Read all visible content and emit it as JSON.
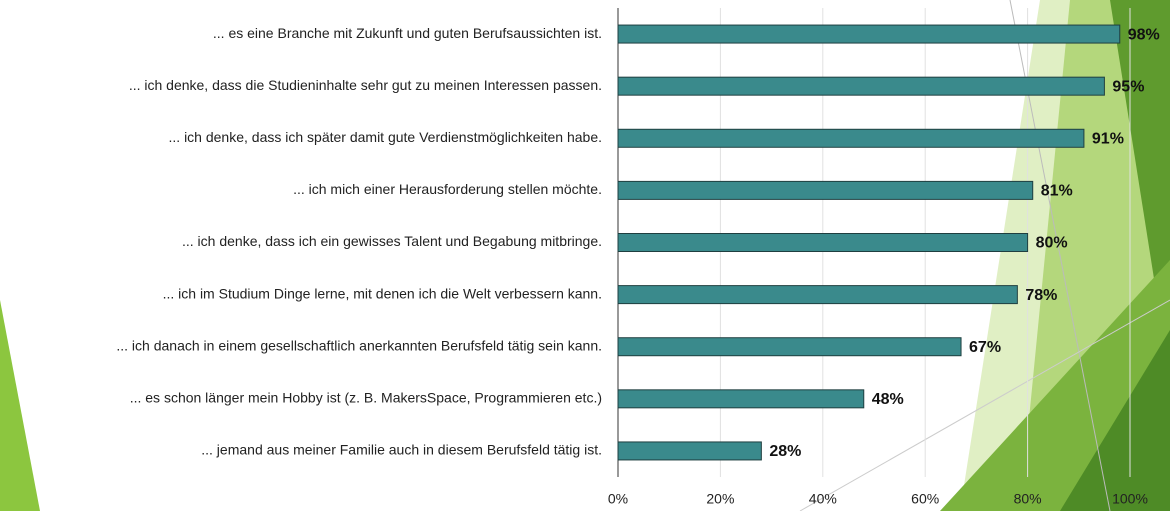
{
  "chart_data": {
    "type": "hbar",
    "categories": [
      "... es eine Branche mit Zukunft und guten Berufsaussichten ist.",
      "... ich denke, dass die Studieninhalte sehr gut zu meinen Interessen passen.",
      "... ich denke, dass ich später damit gute Verdienstmöglichkeiten habe.",
      "... ich mich einer Herausforderung stellen möchte.",
      "... ich denke, dass ich ein gewisses Talent und Begabung mitbringe.",
      "... ich im Studium Dinge lerne, mit denen ich die Welt verbessern kann.",
      "... ich danach in einem gesellschaftlich anerkannten Berufsfeld tätig sein kann.",
      "... es schon länger mein Hobby ist (z. B. MakersSpace, Programmieren etc.)",
      "... jemand aus meiner Familie auch in diesem Berufsfeld tätig ist."
    ],
    "values": [
      98,
      95,
      91,
      81,
      80,
      78,
      67,
      48,
      28
    ],
    "value_labels": [
      "98%",
      "95%",
      "91%",
      "81%",
      "80%",
      "78%",
      "67%",
      "48%",
      "28%"
    ],
    "color": "#3a8a8c",
    "xlim": [
      0,
      100
    ],
    "xticks": [
      {
        "value": 0,
        "label": "0%"
      },
      {
        "value": 20,
        "label": "20%"
      },
      {
        "value": 40,
        "label": "40%"
      },
      {
        "value": 60,
        "label": "60%"
      },
      {
        "value": 80,
        "label": "80%"
      },
      {
        "value": 100,
        "label": "100%"
      }
    ],
    "grid": true
  }
}
